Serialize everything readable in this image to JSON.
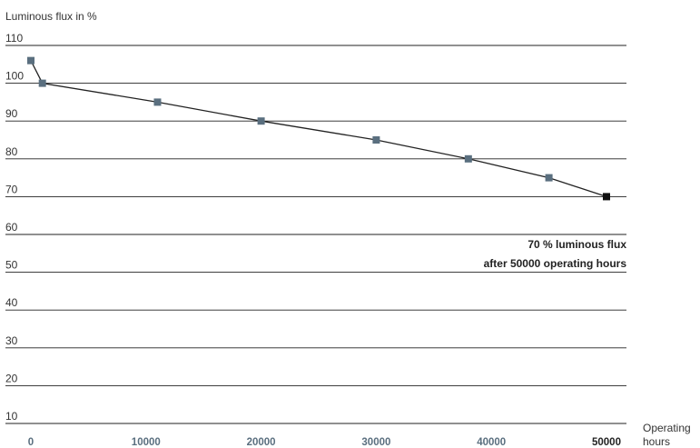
{
  "chart_data": {
    "type": "line",
    "ylabel": "Luminous flux in %",
    "xlabel_lines": [
      "Operating",
      "hours"
    ],
    "y_ticks": [
      "10",
      "20",
      "30",
      "40",
      "50",
      "60",
      "70",
      "80",
      "90",
      "100",
      "110"
    ],
    "x_ticks": [
      "0",
      "10000",
      "20000",
      "30000",
      "40000",
      "50000"
    ],
    "ylim": [
      10,
      110
    ],
    "xlim": [
      0,
      50000
    ],
    "grid": true,
    "series": [
      {
        "points": [
          {
            "x": 0,
            "y": 106
          },
          {
            "x": 1000,
            "y": 100
          },
          {
            "x": 11000,
            "y": 95
          },
          {
            "x": 20000,
            "y": 90
          },
          {
            "x": 30000,
            "y": 85
          },
          {
            "x": 38000,
            "y": 80
          },
          {
            "x": 45000,
            "y": 75
          },
          {
            "x": 50000,
            "y": 70
          }
        ]
      }
    ],
    "annotation_lines": [
      "70 % luminous flux",
      "after 50000 operating hours"
    ],
    "colors": {
      "marker": "#5a6f7f",
      "marker_highlight": "#111111",
      "line": "#222222",
      "grid": "#222222",
      "tick_x": "#5a6f7f"
    }
  }
}
